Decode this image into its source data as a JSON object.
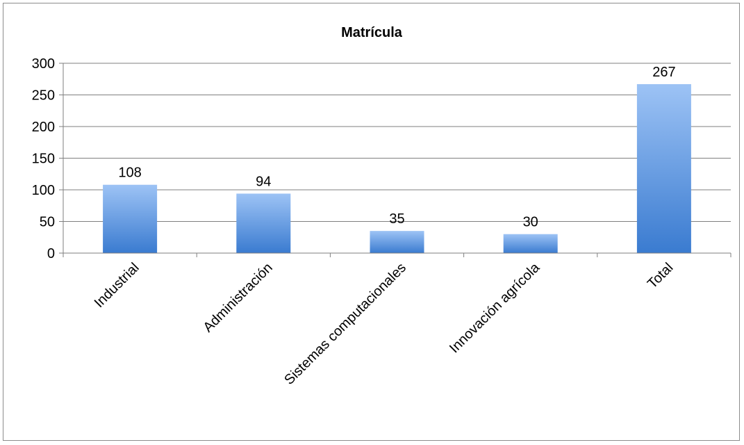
{
  "chart_data": {
    "type": "bar",
    "title": "Matrícula",
    "xlabel": "",
    "ylabel": "",
    "categories": [
      "Industrial",
      "Administración",
      "Sistemas computacionales",
      "Innovación agrícola",
      "Total"
    ],
    "values": [
      108,
      94,
      35,
      30,
      267
    ],
    "data_labels": [
      "108",
      "94",
      "35",
      "30",
      "267"
    ],
    "ylim": [
      0,
      300
    ],
    "yticks": [
      "0",
      "50",
      "100",
      "150",
      "200",
      "250",
      "300"
    ],
    "grid": true,
    "legend": "none",
    "colors": {
      "bar_top": "#9dc3f5",
      "bar_bottom": "#3a7bd0",
      "grid": "#7f7f7f",
      "axis": "#7f7f7f"
    }
  }
}
